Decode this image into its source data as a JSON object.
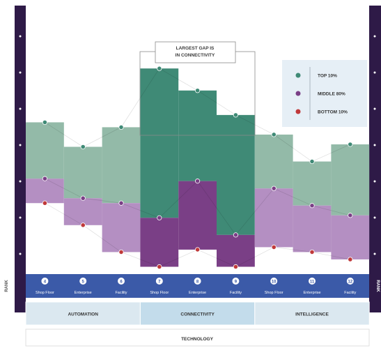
{
  "chart_data": {
    "type": "bar",
    "title": "",
    "ylabel": "RANK",
    "xlabel": "TECHNOLOGY",
    "ylim": [
      0,
      100
    ],
    "annotation": "LARGEST GAP IS IN CONNECTIVITY",
    "legend_position": "top-right",
    "columns": [
      {
        "number": "4",
        "label": "Shop Floor"
      },
      {
        "number": "5",
        "label": "Enterprise"
      },
      {
        "number": "6",
        "label": "Facility"
      },
      {
        "number": "7",
        "label": "Shop Floor"
      },
      {
        "number": "8",
        "label": "Enterprise"
      },
      {
        "number": "9",
        "label": "Facility"
      },
      {
        "number": "10",
        "label": "Shop Floor"
      },
      {
        "number": "11",
        "label": "Enterprise"
      },
      {
        "number": "12",
        "label": "Facility"
      }
    ],
    "groups": [
      {
        "name": "AUTOMATION",
        "span": [
          0,
          3
        ]
      },
      {
        "name": "CONNECTIVITY",
        "span": [
          3,
          6
        ]
      },
      {
        "name": "INTELLIGENCE",
        "span": [
          6,
          9
        ]
      }
    ],
    "series": [
      {
        "name": "TOP 10%",
        "color": "#3f8a76",
        "values": [
          60,
          50,
          58,
          82,
          73,
          63,
          55,
          44,
          51
        ]
      },
      {
        "name": "MIDDLE 80%",
        "color": "#7a3f86",
        "values": [
          37,
          29,
          27,
          21,
          36,
          14,
          33,
          26,
          22
        ]
      },
      {
        "name": "BOTTOM 10%",
        "color": "#c0393a",
        "values": [
          27,
          18,
          7,
          1,
          8,
          1,
          9,
          7,
          4
        ]
      }
    ]
  },
  "colors": {
    "rail": "#2e1a47",
    "top_fill": "#93baa8",
    "top_fill_focus": "#3f8a76",
    "mid_fill": "#b48fc2",
    "mid_fill_focus": "#7a3f86",
    "band": "#3b5aa8",
    "group_bg": "#dbe8f0",
    "group_bg_focus": "#c3dceb"
  }
}
